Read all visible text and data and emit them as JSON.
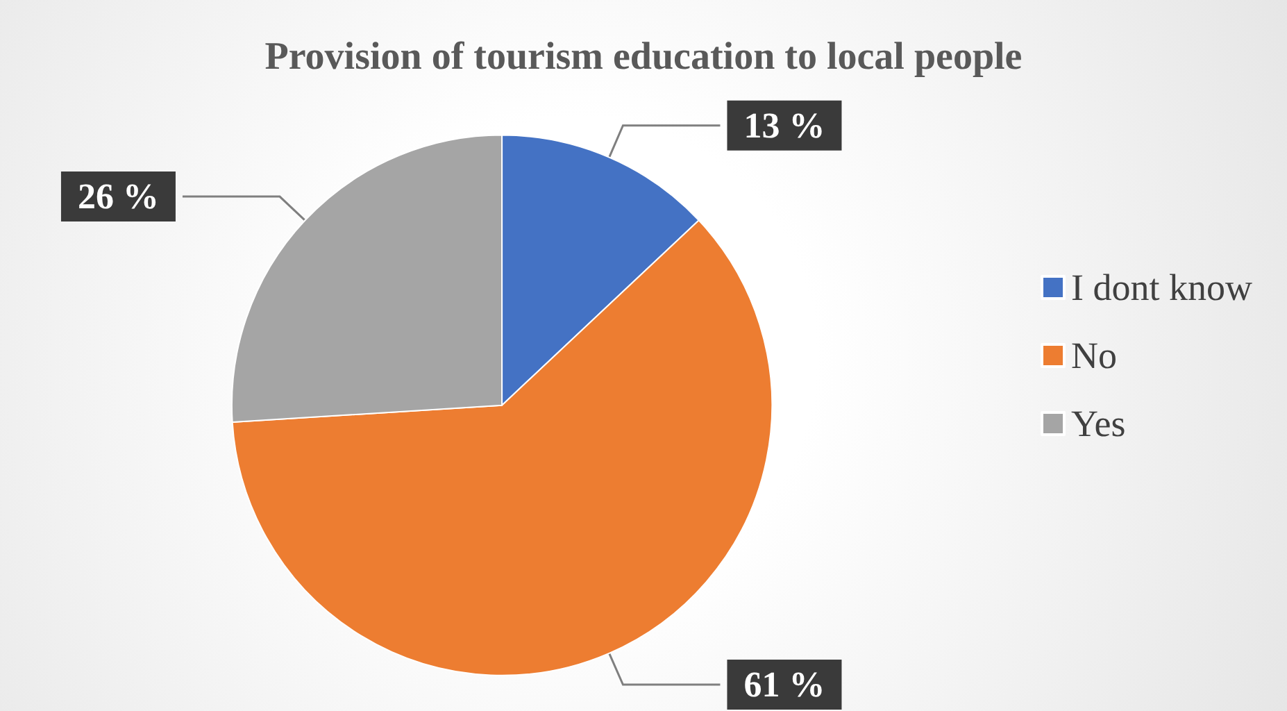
{
  "chart_data": {
    "type": "pie",
    "title": "Provision of tourism education to local people",
    "categories": [
      "I dont know",
      "No",
      "Yes"
    ],
    "values": [
      13,
      61,
      26
    ],
    "value_labels": [
      "13 %",
      "61 %",
      "26 %"
    ],
    "colors": [
      "#4472c4",
      "#ed7d31",
      "#a5a5a5"
    ],
    "legend": "right"
  }
}
